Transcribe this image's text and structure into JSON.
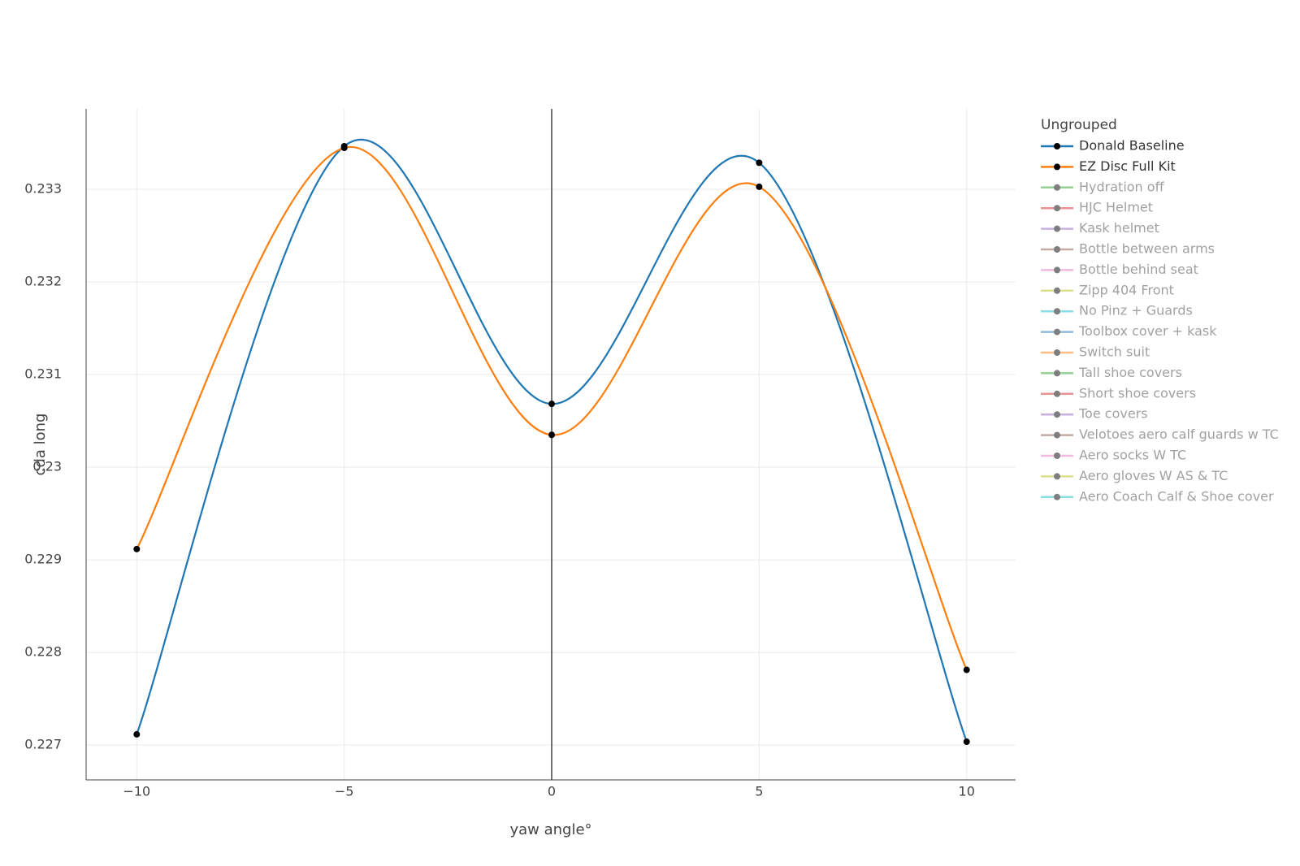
{
  "chart_data": {
    "type": "line",
    "x_title": "yaw angle°",
    "y_title": "cda long",
    "legend_title": "Ungrouped",
    "x": [
      -10,
      -5,
      0,
      5,
      10
    ],
    "series": [
      {
        "name": "Donald Baseline",
        "color": "#1f77b4",
        "values": [
          0.227116,
          0.233465,
          0.230683,
          0.233286,
          0.227036
        ]
      },
      {
        "name": "EZ Disc Full Kit",
        "color": "#ff7f0e",
        "values": [
          0.229116,
          0.233447,
          0.230349,
          0.233027,
          0.227812
        ]
      }
    ],
    "hidden_series": [
      {
        "name": "Hydration off",
        "color": "#2ca02c"
      },
      {
        "name": "HJC Helmet",
        "color": "#d62728"
      },
      {
        "name": "Kask helmet",
        "color": "#9467bd"
      },
      {
        "name": "Bottle between arms",
        "color": "#8c564b"
      },
      {
        "name": "Bottle behind seat",
        "color": "#e377c2"
      },
      {
        "name": "Zipp 404 Front",
        "color": "#bcbd22"
      },
      {
        "name": "No Pinz + Guards",
        "color": "#17becf"
      },
      {
        "name": "Toolbox cover + kask",
        "color": "#1f77b4"
      },
      {
        "name": "Switch suit",
        "color": "#ff7f0e"
      },
      {
        "name": "Tall shoe covers",
        "color": "#2ca02c"
      },
      {
        "name": "Short shoe covers",
        "color": "#d62728"
      },
      {
        "name": "Toe covers",
        "color": "#9467bd"
      },
      {
        "name": "Velotoes aero calf guards w TC",
        "color": "#8c564b"
      },
      {
        "name": "Aero socks W TC",
        "color": "#e377c2"
      },
      {
        "name": "Aero gloves W AS & TC",
        "color": "#bcbd22"
      },
      {
        "name": "Aero Coach Calf & Shoe cover",
        "color": "#17becf"
      }
    ],
    "marker_color": "#000000",
    "xlim": [
      -11.22,
      11.18
    ],
    "ylim": [
      0.226624,
      0.233868
    ],
    "xticks": [
      {
        "value": -10,
        "label": "−10"
      },
      {
        "value": -5,
        "label": "−5"
      },
      0,
      5,
      10
    ],
    "yticks": [
      0.227,
      0.228,
      0.229,
      0.23,
      0.231,
      0.232,
      0.233
    ],
    "grid": true,
    "smooth": true
  }
}
